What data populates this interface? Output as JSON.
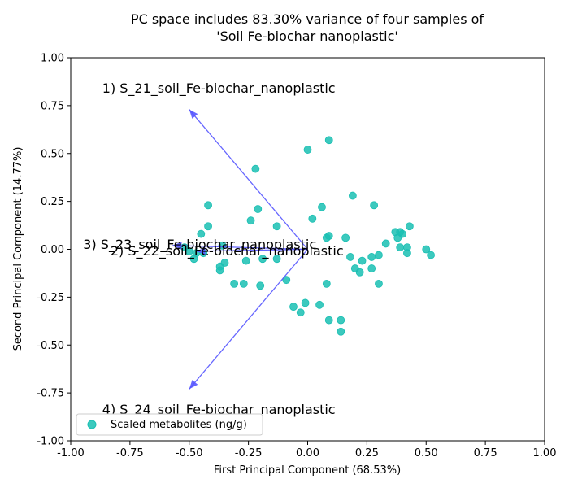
{
  "chart_data": {
    "type": "scatter",
    "title_lines": [
      "PC space includes 83.30% variance of four samples of",
      "'Soil Fe-biochar nanoplastic'"
    ],
    "xlabel": "First Principal Component (68.53%)",
    "ylabel": "Second Principal Component (14.77%)",
    "xlim": [
      -1.0,
      1.0
    ],
    "ylim": [
      -1.0,
      1.0
    ],
    "xticks": [
      "-1.00",
      "-0.75",
      "-0.50",
      "-0.25",
      "0.00",
      "0.25",
      "0.50",
      "0.75",
      "1.00"
    ],
    "yticks": [
      "-1.00",
      "-0.75",
      "-0.50",
      "-0.25",
      "0.00",
      "0.25",
      "0.50",
      "0.75",
      "1.00"
    ],
    "grid": false,
    "legend": {
      "position": "bottom-left",
      "label": "Scaled metabolites (ng/g)"
    },
    "colors": {
      "points": "#1ABFB3",
      "arrows": "#5555FF"
    },
    "series": [
      {
        "name": "Scaled metabolites (ng/g)",
        "points": [
          [
            0.0,
            0.52
          ],
          [
            0.09,
            0.57
          ],
          [
            -0.22,
            0.42
          ],
          [
            -0.42,
            0.23
          ],
          [
            -0.21,
            0.21
          ],
          [
            0.19,
            0.28
          ],
          [
            0.28,
            0.23
          ],
          [
            0.06,
            0.22
          ],
          [
            -0.42,
            0.12
          ],
          [
            -0.13,
            0.12
          ],
          [
            -0.24,
            0.15
          ],
          [
            0.02,
            0.16
          ],
          [
            -0.45,
            0.08
          ],
          [
            0.08,
            0.06
          ],
          [
            0.09,
            0.07
          ],
          [
            0.16,
            0.06
          ],
          [
            0.37,
            0.09
          ],
          [
            0.39,
            0.09
          ],
          [
            0.4,
            0.08
          ],
          [
            0.38,
            0.06
          ],
          [
            0.43,
            0.12
          ],
          [
            0.33,
            0.03
          ],
          [
            0.39,
            0.01
          ],
          [
            0.42,
            0.01
          ],
          [
            0.5,
            0.0
          ],
          [
            0.52,
            -0.03
          ],
          [
            0.42,
            -0.02
          ],
          [
            0.3,
            -0.03
          ],
          [
            0.27,
            -0.04
          ],
          [
            -0.52,
            0.01
          ],
          [
            -0.5,
            -0.01
          ],
          [
            -0.47,
            -0.02
          ],
          [
            -0.44,
            -0.02
          ],
          [
            -0.48,
            -0.05
          ],
          [
            -0.36,
            0.02
          ],
          [
            -0.35,
            -0.07
          ],
          [
            -0.37,
            -0.09
          ],
          [
            -0.37,
            -0.11
          ],
          [
            -0.26,
            -0.06
          ],
          [
            -0.19,
            -0.05
          ],
          [
            -0.13,
            -0.05
          ],
          [
            0.18,
            -0.04
          ],
          [
            0.23,
            -0.06
          ],
          [
            0.2,
            -0.1
          ],
          [
            0.22,
            -0.12
          ],
          [
            0.27,
            -0.1
          ],
          [
            -0.31,
            -0.18
          ],
          [
            -0.27,
            -0.18
          ],
          [
            -0.2,
            -0.19
          ],
          [
            0.08,
            -0.18
          ],
          [
            0.3,
            -0.18
          ],
          [
            -0.09,
            -0.16
          ],
          [
            -0.06,
            -0.3
          ],
          [
            -0.01,
            -0.28
          ],
          [
            0.05,
            -0.29
          ],
          [
            -0.03,
            -0.33
          ],
          [
            0.09,
            -0.37
          ],
          [
            0.14,
            -0.37
          ],
          [
            0.14,
            -0.43
          ]
        ]
      }
    ],
    "loadings": [
      {
        "label": "1) S_21_soil_Fe-biochar_nanoplastic",
        "x": -0.5,
        "y": 0.73
      },
      {
        "label": "2) S_22_soil_Fe-biochar_nanoplastic",
        "x": -0.47,
        "y": -0.01
      },
      {
        "label": "3) S_23_soil_Fe-biochar_nanoplastic",
        "x": -0.57,
        "y": 0.02
      },
      {
        "label": "4) S_24_soil_Fe-biochar_nanoplastic",
        "x": -0.5,
        "y": -0.73
      }
    ]
  }
}
